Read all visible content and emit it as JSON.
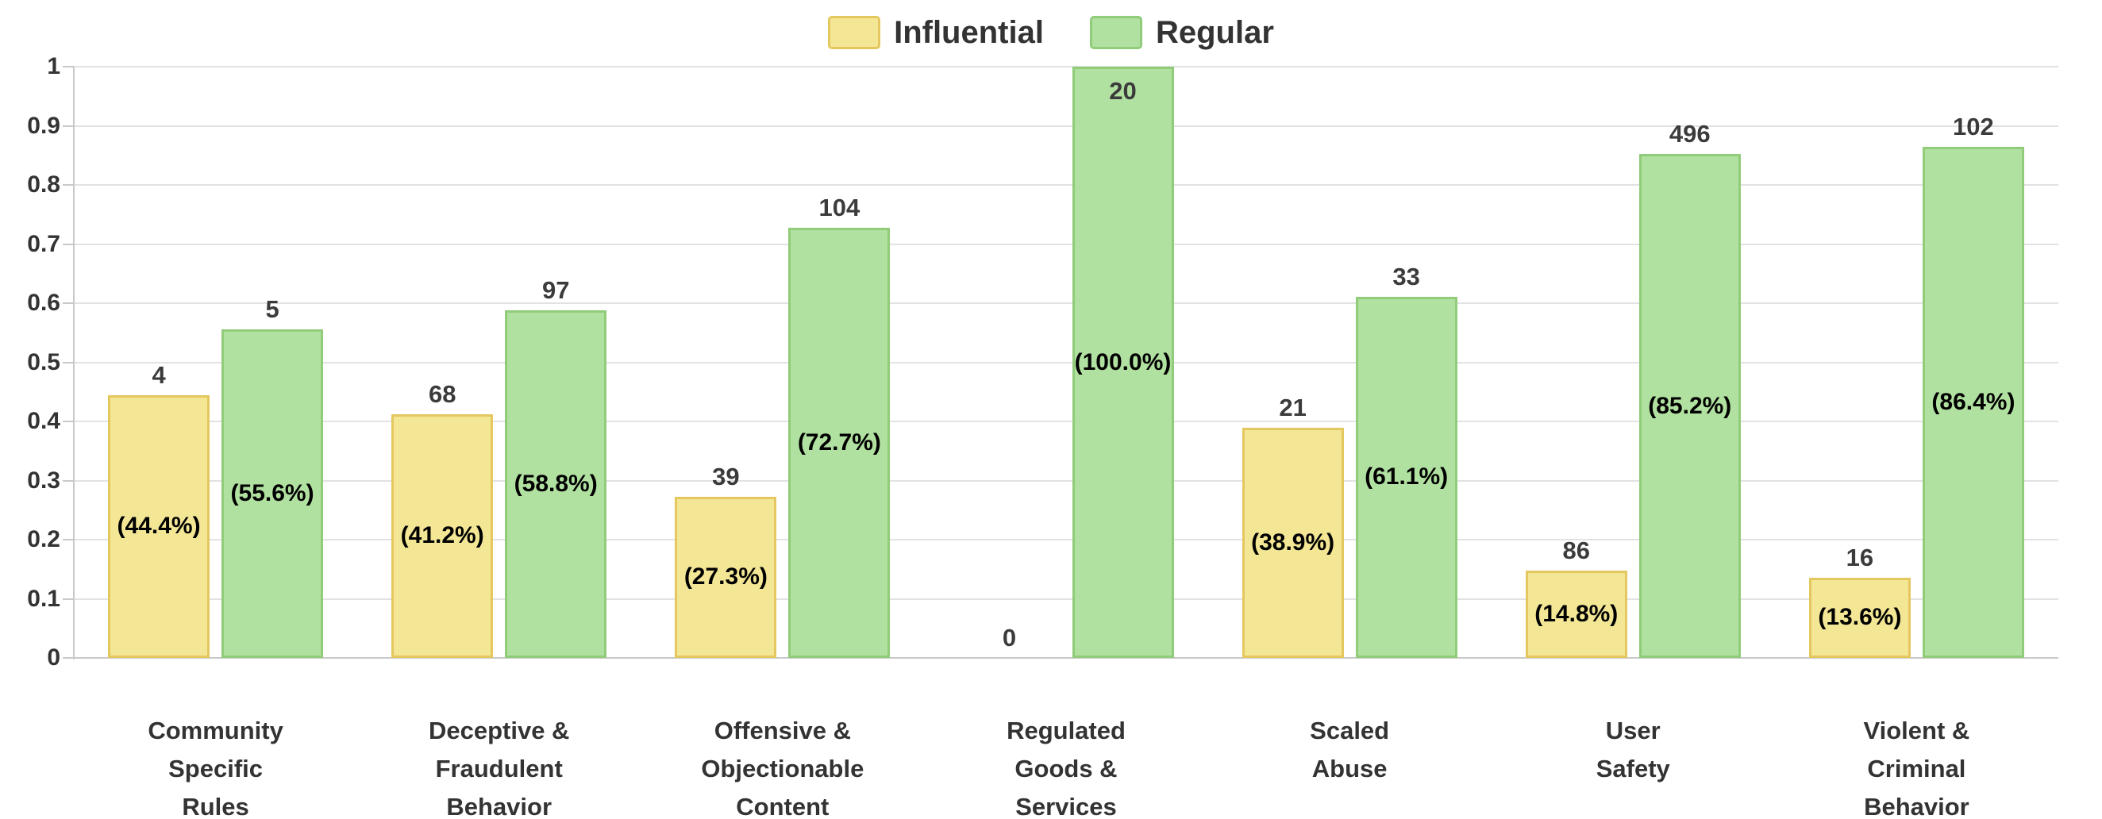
{
  "chart_data": {
    "type": "bar",
    "title": "",
    "xlabel": "",
    "ylabel": "",
    "ylim": [
      0,
      1
    ],
    "grid": true,
    "legend_position": "top",
    "yticks": [
      "0",
      "0.1",
      "0.2",
      "0.3",
      "0.4",
      "0.5",
      "0.6",
      "0.7",
      "0.8",
      "0.9",
      "1"
    ],
    "categories": [
      "Community\nSpecific\nRules",
      "Deceptive &\nFraudulent\nBehavior",
      "Offensive &\nObjectionable\nContent",
      "Regulated\nGoods &\nServices",
      "Scaled\nAbuse",
      "User\nSafety",
      "Violent &\nCriminal\nBehavior"
    ],
    "series": [
      {
        "name": "Influential",
        "fill_color": "#F3E795",
        "border_color": "#E5C75F",
        "values": [
          0.4444,
          0.4121,
          0.2727,
          0,
          0.3889,
          0.1478,
          0.1356
        ],
        "counts": [
          "4",
          "68",
          "39",
          "0",
          "21",
          "86",
          "16"
        ],
        "percent_labels": [
          "(44.4%)",
          "(41.2%)",
          "(27.3%)",
          "",
          "(38.9%)",
          "(14.8%)",
          "(13.6%)"
        ]
      },
      {
        "name": "Regular",
        "fill_color": "#B1E1A0",
        "border_color": "#90CC79",
        "values": [
          0.5556,
          0.5879,
          0.7273,
          1,
          0.6111,
          0.8522,
          0.8644
        ],
        "counts": [
          "5",
          "97",
          "104",
          "20",
          "33",
          "496",
          "102"
        ],
        "percent_labels": [
          "(55.6%)",
          "(58.8%)",
          "(72.7%)",
          "(100.0%)",
          "(61.1%)",
          "(85.2%)",
          "(86.4%)"
        ]
      }
    ],
    "colors": {
      "gridline": "#e2e2e2",
      "axis_line": "#c9c9c9",
      "count_text": "#3b3b3b",
      "percent_text": "#000000",
      "axis_text": "#333333"
    }
  }
}
